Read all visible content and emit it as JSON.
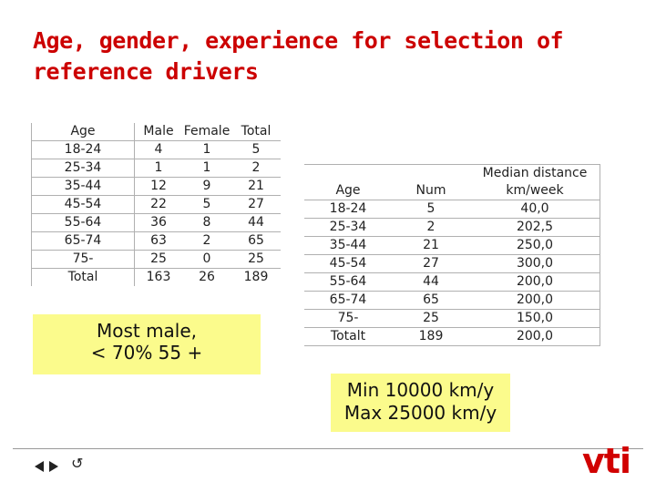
{
  "title": "Age, gender, experience for selection of reference drivers",
  "table1": {
    "header": [
      "Age",
      "Male",
      "Female",
      "Total"
    ],
    "rows": [
      [
        "18-24",
        "4",
        "1",
        "5"
      ],
      [
        "25-34",
        "1",
        "1",
        "2"
      ],
      [
        "35-44",
        "12",
        "9",
        "21"
      ],
      [
        "45-54",
        "22",
        "5",
        "27"
      ],
      [
        "55-64",
        "36",
        "8",
        "44"
      ],
      [
        "65-74",
        "63",
        "2",
        "65"
      ],
      [
        "75-",
        "25",
        "0",
        "25"
      ],
      [
        "Total",
        "163",
        "26",
        "189"
      ]
    ]
  },
  "table2": {
    "header": [
      "Age",
      "Num",
      "Median distance km/week"
    ],
    "rows": [
      [
        "18-24",
        "5",
        "40,0"
      ],
      [
        "25-34",
        "2",
        "202,5"
      ],
      [
        "35-44",
        "21",
        "250,0"
      ],
      [
        "45-54",
        "27",
        "300,0"
      ],
      [
        "55-64",
        "44",
        "200,0"
      ],
      [
        "65-74",
        "65",
        "200,0"
      ],
      [
        "75-",
        "25",
        "150,0"
      ],
      [
        "Totalt",
        "189",
        "200,0"
      ]
    ]
  },
  "note1": {
    "line1": "Most male,",
    "line2": "< 70% 55 +"
  },
  "note2": {
    "line1": "Min 10000 km/y",
    "line2": "Max 25000 km/y"
  },
  "logo": "vti",
  "nav": {
    "return_glyph": "↺"
  },
  "colors": {
    "title": "#cc0000",
    "note_bg": "#fbfb8c",
    "logo": "#d10000"
  }
}
